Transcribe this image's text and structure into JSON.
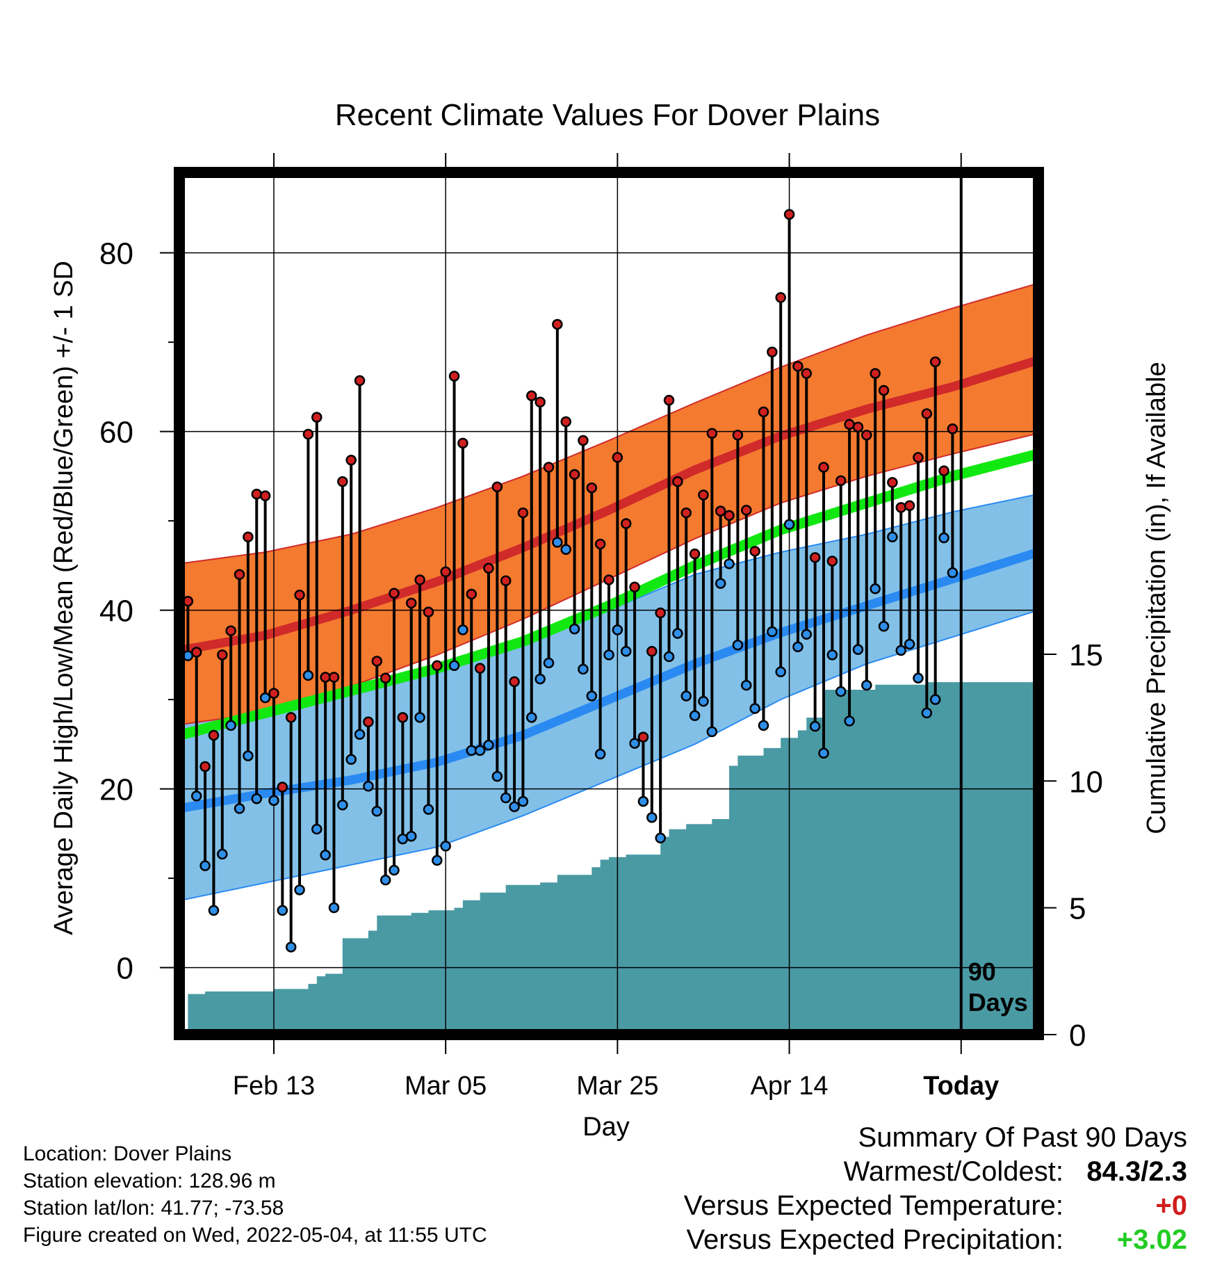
{
  "chart_data": {
    "type": "line",
    "title": "Recent Climate Values For Dover Plains",
    "xlabel": "Day",
    "ylabel": "Average Daily High/Low/Mean (Red/Blue/Green) +/- 1 SD",
    "y2label": "Cumulative Precipitation (in), If Available",
    "x_tick_labels": [
      "Feb 13",
      "Mar 05",
      "Mar 25",
      "Apr 14",
      "Today"
    ],
    "x_tick_days": [
      13,
      33,
      53,
      73,
      93
    ],
    "x_range_days": [
      2,
      102
    ],
    "ylim": [
      -7.5,
      89
    ],
    "y_ticks": [
      0,
      20,
      40,
      60,
      80
    ],
    "y2lim": [
      0,
      34
    ],
    "y2_ticks": [
      0,
      5,
      10,
      15
    ],
    "today_marker_label": "90\nDays",
    "normals": {
      "days": [
        2,
        12,
        22,
        32,
        42,
        52,
        62,
        72,
        82,
        92,
        102
      ],
      "high_mean": [
        35.5,
        37.2,
        40.0,
        43.2,
        47.0,
        51.2,
        55.7,
        59.5,
        62.5,
        65.0,
        68.0
      ],
      "high_sd_upper": [
        45.2,
        46.5,
        48.5,
        51.5,
        55.0,
        59.0,
        63.2,
        67.2,
        70.8,
        73.8,
        76.6
      ],
      "high_sd_lower": [
        27.2,
        28.5,
        31.5,
        35.0,
        39.0,
        43.5,
        48.0,
        52.0,
        55.0,
        57.5,
        59.8
      ],
      "low_mean": [
        17.8,
        19.5,
        21.0,
        23.0,
        26.0,
        30.0,
        34.0,
        37.5,
        40.5,
        43.5,
        46.5
      ],
      "low_sd_upper": [
        28.5,
        29.5,
        31.0,
        33.0,
        36.0,
        40.0,
        44.0,
        46.5,
        48.5,
        51.0,
        53.0
      ],
      "low_sd_lower": [
        7.5,
        9.5,
        11.5,
        13.5,
        17.0,
        21.0,
        25.0,
        30.0,
        34.0,
        37.0,
        40.0
      ],
      "mean_mean": [
        26.0,
        28.5,
        31.0,
        33.5,
        36.5,
        40.5,
        45.0,
        49.0,
        52.0,
        55.0,
        57.5
      ]
    },
    "series": [
      {
        "name": "Daily High",
        "days": [
          3,
          4,
          5,
          6,
          7,
          8,
          9,
          10,
          11,
          12,
          13,
          14,
          15,
          16,
          17,
          18,
          19,
          20,
          21,
          22,
          23,
          24,
          25,
          26,
          27,
          28,
          29,
          30,
          31,
          32,
          33,
          34,
          35,
          36,
          37,
          38,
          39,
          40,
          41,
          42,
          43,
          44,
          45,
          46,
          47,
          48,
          49,
          50,
          51,
          52,
          53,
          54,
          55,
          56,
          57,
          58,
          59,
          60,
          61,
          62,
          63,
          64,
          65,
          66,
          67,
          68,
          69,
          70,
          71,
          72,
          73,
          74,
          75,
          76,
          77,
          78,
          79,
          80,
          81,
          82,
          83,
          84,
          85,
          86,
          87,
          88,
          89,
          90,
          91,
          92
        ],
        "values": [
          41.0,
          35.3,
          22.5,
          26.0,
          35.0,
          37.7,
          44.0,
          48.2,
          53.0,
          52.8,
          30.7,
          20.2,
          28.0,
          41.7,
          59.7,
          61.6,
          32.5,
          32.5,
          54.4,
          56.8,
          65.7,
          27.5,
          34.3,
          32.4,
          41.9,
          28.0,
          40.8,
          43.4,
          39.8,
          33.8,
          44.3,
          66.2,
          58.7,
          41.8,
          33.5,
          44.7,
          53.8,
          43.3,
          32.0,
          50.9,
          64.0,
          63.3,
          56.0,
          72.0,
          61.1,
          55.2,
          59.0,
          53.7,
          47.4,
          43.4,
          57.1,
          49.7,
          42.6,
          25.8,
          35.4,
          39.7,
          63.5,
          54.4,
          50.9,
          46.3,
          52.9,
          59.8,
          51.1,
          50.6,
          59.6,
          51.2,
          46.6,
          62.2,
          68.9,
          75.0,
          84.3,
          67.3,
          66.5,
          45.9,
          56.0,
          45.5,
          54.5,
          60.8,
          60.5,
          59.6,
          66.5,
          64.6,
          54.3,
          51.5,
          51.7,
          57.1,
          62.0,
          67.8,
          55.6,
          60.3
        ]
      },
      {
        "name": "Daily Low",
        "days": [
          3,
          4,
          5,
          6,
          7,
          8,
          9,
          10,
          11,
          12,
          13,
          14,
          15,
          16,
          17,
          18,
          19,
          20,
          21,
          22,
          23,
          24,
          25,
          26,
          27,
          28,
          29,
          30,
          31,
          32,
          33,
          34,
          35,
          36,
          37,
          38,
          39,
          40,
          41,
          42,
          43,
          44,
          45,
          46,
          47,
          48,
          49,
          50,
          51,
          52,
          53,
          54,
          55,
          56,
          57,
          58,
          59,
          60,
          61,
          62,
          63,
          64,
          65,
          66,
          67,
          68,
          69,
          70,
          71,
          72,
          73,
          74,
          75,
          76,
          77,
          78,
          79,
          80,
          81,
          82,
          83,
          84,
          85,
          86,
          87,
          88,
          89,
          90,
          91,
          92
        ],
        "values": [
          34.9,
          19.2,
          11.4,
          6.4,
          12.7,
          27.1,
          17.8,
          23.7,
          18.9,
          30.2,
          18.7,
          6.4,
          2.3,
          8.7,
          32.7,
          15.5,
          12.6,
          6.7,
          18.2,
          23.3,
          26.1,
          20.3,
          17.5,
          9.8,
          10.9,
          14.4,
          14.7,
          28.0,
          17.7,
          12.0,
          13.6,
          33.8,
          37.8,
          24.3,
          24.3,
          24.9,
          21.4,
          19.0,
          18.0,
          18.6,
          28.0,
          32.3,
          34.1,
          47.6,
          46.8,
          37.9,
          33.4,
          30.4,
          23.9,
          35.0,
          37.8,
          35.4,
          25.1,
          18.6,
          16.8,
          14.5,
          34.8,
          37.4,
          30.4,
          28.2,
          29.8,
          26.4,
          43.0,
          45.2,
          36.1,
          31.6,
          29.0,
          27.1,
          37.6,
          33.1,
          49.6,
          35.9,
          37.3,
          27.0,
          24.0,
          35.0,
          30.9,
          27.6,
          35.6,
          31.6,
          42.4,
          38.2,
          48.2,
          35.5,
          36.2,
          32.4,
          28.5,
          30.0,
          48.1,
          44.2
        ]
      }
    ],
    "precipitation": {
      "days": [
        2,
        3,
        4,
        5,
        6,
        7,
        8,
        9,
        10,
        11,
        12,
        13,
        14,
        15,
        16,
        17,
        18,
        19,
        20,
        21,
        22,
        23,
        24,
        25,
        26,
        27,
        28,
        29,
        30,
        31,
        32,
        33,
        34,
        35,
        36,
        37,
        38,
        39,
        40,
        41,
        42,
        43,
        44,
        45,
        46,
        47,
        48,
        49,
        50,
        51,
        52,
        53,
        54,
        55,
        56,
        57,
        58,
        59,
        60,
        61,
        62,
        63,
        64,
        65,
        66,
        67,
        68,
        69,
        70,
        71,
        72,
        73,
        74,
        75,
        76,
        77,
        78,
        79,
        80,
        81,
        82,
        83,
        84,
        85,
        86,
        87,
        88,
        89,
        90,
        91,
        92,
        102
      ],
      "values": [
        0.0,
        1.6,
        1.6,
        1.7,
        1.7,
        1.7,
        1.7,
        1.7,
        1.7,
        1.7,
        1.7,
        1.8,
        1.8,
        1.8,
        1.8,
        2.0,
        2.3,
        2.4,
        2.4,
        3.8,
        3.8,
        3.8,
        4.1,
        4.7,
        4.7,
        4.7,
        4.7,
        4.8,
        4.8,
        4.9,
        4.9,
        4.9,
        5.0,
        5.3,
        5.3,
        5.6,
        5.6,
        5.6,
        5.9,
        5.9,
        5.9,
        5.9,
        6.0,
        6.0,
        6.3,
        6.3,
        6.3,
        6.3,
        6.6,
        6.9,
        7.0,
        7.0,
        7.1,
        7.1,
        7.1,
        7.1,
        7.8,
        8.1,
        8.1,
        8.3,
        8.3,
        8.3,
        8.5,
        8.5,
        10.6,
        11.0,
        11.0,
        11.0,
        11.3,
        11.3,
        11.7,
        11.7,
        12.0,
        12.5,
        12.5,
        13.6,
        13.6,
        13.6,
        13.6,
        13.6,
        13.6,
        13.8,
        13.8,
        13.8,
        13.8,
        13.8,
        13.8,
        13.9,
        13.9,
        13.9,
        13.9,
        13.9
      ]
    }
  },
  "location": {
    "location_line": "Location: Dover Plains",
    "elevation_line": "Station elevation: 128.96 m",
    "latlon_line": "Station lat/lon: 41.77; -73.58",
    "created_line": "Figure created on Wed, 2022-05-04, at 11:55 UTC"
  },
  "summary": {
    "title": "Summary Of Past 90 Days",
    "warmest_coldest_label": "Warmest/Coldest:",
    "warmest_coldest_value": "84.3/2.3",
    "temp_label": "Versus Expected Temperature:",
    "temp_value": "+0",
    "precip_label": "Versus Expected Precipitation:",
    "precip_value": "+3.02"
  },
  "colors": {
    "high_band": "#f47a30",
    "high_mean": "#d02a2a",
    "low_band": "#82c0e8",
    "low_mean": "#2a8af2",
    "mean_line": "#11e811",
    "precip": "#4a9aa4",
    "high_marker": "#d02020",
    "low_marker": "#2f8fe8",
    "value_red": "#d01c1c",
    "value_green": "#22cc22"
  }
}
